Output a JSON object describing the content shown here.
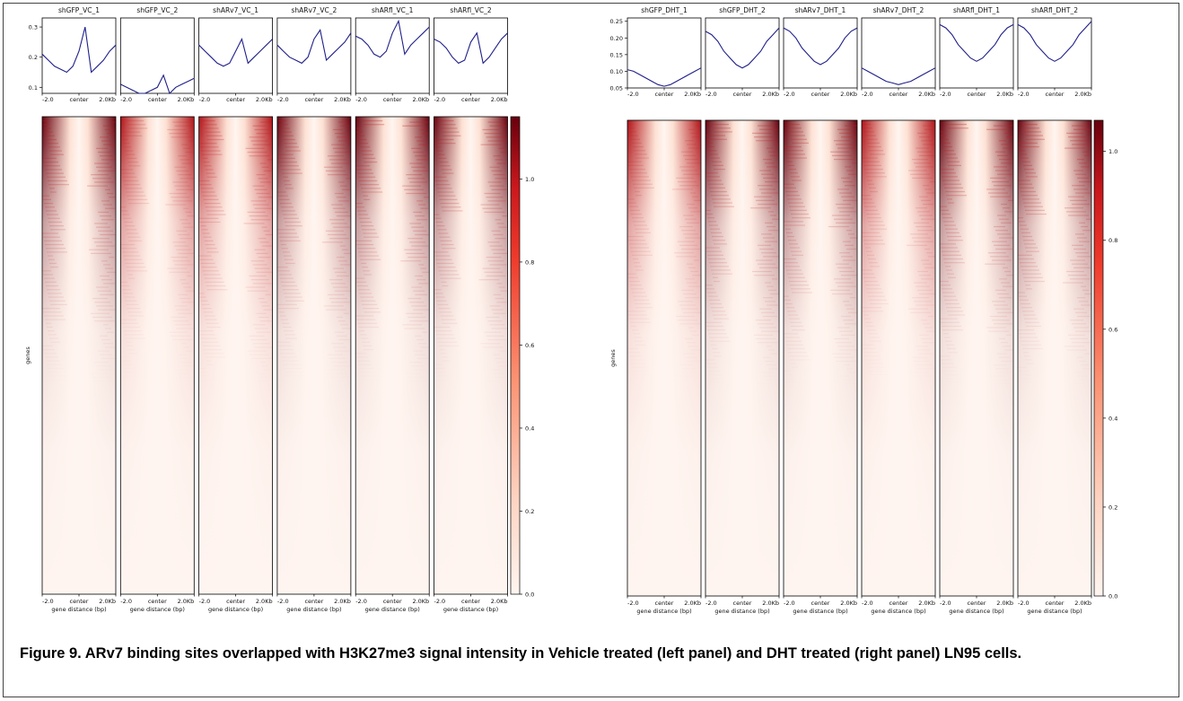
{
  "caption": "Figure 9. ARv7 binding sites overlapped with H3K27me3 signal intensity in Vehicle treated (left panel) and DHT treated (right panel) LN95 cells.",
  "colors": {
    "profile_line": "#1f1f8a",
    "cmap_low": "#fff5f0",
    "cmap_mid": "#f4654b",
    "cmap_high": "#67000d"
  },
  "chart_data": [
    {
      "type": "heatmap",
      "panel": "left",
      "ylabel": "genes",
      "xlabel": "gene distance (bp)",
      "x_ticks": [
        "-2.0",
        "center",
        "2.0Kb"
      ],
      "profile_yticks": [
        "0.1",
        "0.2",
        "0.3"
      ],
      "profile_ylim": [
        0.08,
        0.33
      ],
      "colorbar_ticks": [
        "0.0",
        "0.2",
        "0.4",
        "0.6",
        "0.8",
        "1.0"
      ],
      "colorbar_max": 1.15,
      "samples": [
        {
          "name": "shGFP_VC_1",
          "profile": [
            0.21,
            0.19,
            0.17,
            0.16,
            0.15,
            0.17,
            0.22,
            0.3,
            0.15,
            0.17,
            0.19,
            0.22,
            0.24
          ],
          "intensity": 0.9
        },
        {
          "name": "shGFP_VC_2",
          "profile": [
            0.11,
            0.1,
            0.09,
            0.08,
            0.08,
            0.09,
            0.1,
            0.14,
            0.08,
            0.1,
            0.11,
            0.12,
            0.13
          ],
          "intensity": 0.55
        },
        {
          "name": "shARv7_VC_1",
          "profile": [
            0.24,
            0.22,
            0.2,
            0.18,
            0.17,
            0.18,
            0.22,
            0.26,
            0.18,
            0.2,
            0.22,
            0.24,
            0.26
          ],
          "intensity": 0.8
        },
        {
          "name": "shARv7_VC_2",
          "profile": [
            0.24,
            0.22,
            0.2,
            0.19,
            0.18,
            0.2,
            0.26,
            0.29,
            0.19,
            0.21,
            0.23,
            0.25,
            0.28
          ],
          "intensity": 0.85
        },
        {
          "name": "shARfl_VC_1",
          "profile": [
            0.27,
            0.26,
            0.24,
            0.21,
            0.2,
            0.22,
            0.28,
            0.32,
            0.21,
            0.24,
            0.26,
            0.28,
            0.3
          ],
          "intensity": 0.95
        },
        {
          "name": "shARfl_VC_2",
          "profile": [
            0.26,
            0.25,
            0.23,
            0.2,
            0.18,
            0.19,
            0.25,
            0.28,
            0.18,
            0.2,
            0.23,
            0.26,
            0.28
          ],
          "intensity": 0.9
        }
      ]
    },
    {
      "type": "heatmap",
      "panel": "right",
      "ylabel": "genes",
      "xlabel": "gene distance (bp)",
      "x_ticks": [
        "-2.0",
        "center",
        "2.0Kb"
      ],
      "profile_yticks": [
        "0.05",
        "0.10",
        "0.15",
        "0.20",
        "0.25"
      ],
      "profile_ylim": [
        0.05,
        0.26
      ],
      "colorbar_ticks": [
        "0.0",
        "0.2",
        "0.4",
        "0.6",
        "0.8",
        "1.0"
      ],
      "colorbar_max": 1.07,
      "samples": [
        {
          "name": "shGFP_DHT_1",
          "profile": [
            0.105,
            0.1,
            0.09,
            0.08,
            0.07,
            0.06,
            0.055,
            0.06,
            0.07,
            0.08,
            0.09,
            0.1,
            0.11
          ],
          "intensity": 0.55
        },
        {
          "name": "shGFP_DHT_2",
          "profile": [
            0.22,
            0.21,
            0.19,
            0.16,
            0.14,
            0.12,
            0.11,
            0.12,
            0.14,
            0.16,
            0.19,
            0.21,
            0.23
          ],
          "intensity": 0.9
        },
        {
          "name": "shARv7_DHT_1",
          "profile": [
            0.23,
            0.22,
            0.2,
            0.17,
            0.15,
            0.13,
            0.12,
            0.13,
            0.15,
            0.17,
            0.2,
            0.22,
            0.23
          ],
          "intensity": 0.9
        },
        {
          "name": "shARv7_DHT_2",
          "profile": [
            0.11,
            0.1,
            0.09,
            0.08,
            0.07,
            0.065,
            0.06,
            0.065,
            0.07,
            0.08,
            0.09,
            0.1,
            0.11
          ],
          "intensity": 0.6
        },
        {
          "name": "shARfl_DHT_1",
          "profile": [
            0.24,
            0.23,
            0.21,
            0.18,
            0.16,
            0.14,
            0.13,
            0.14,
            0.16,
            0.18,
            0.21,
            0.23,
            0.24
          ],
          "intensity": 0.95
        },
        {
          "name": "shARfl_DHT_2",
          "profile": [
            0.24,
            0.23,
            0.21,
            0.18,
            0.16,
            0.14,
            0.13,
            0.14,
            0.16,
            0.18,
            0.21,
            0.23,
            0.25
          ],
          "intensity": 0.95
        }
      ]
    }
  ]
}
